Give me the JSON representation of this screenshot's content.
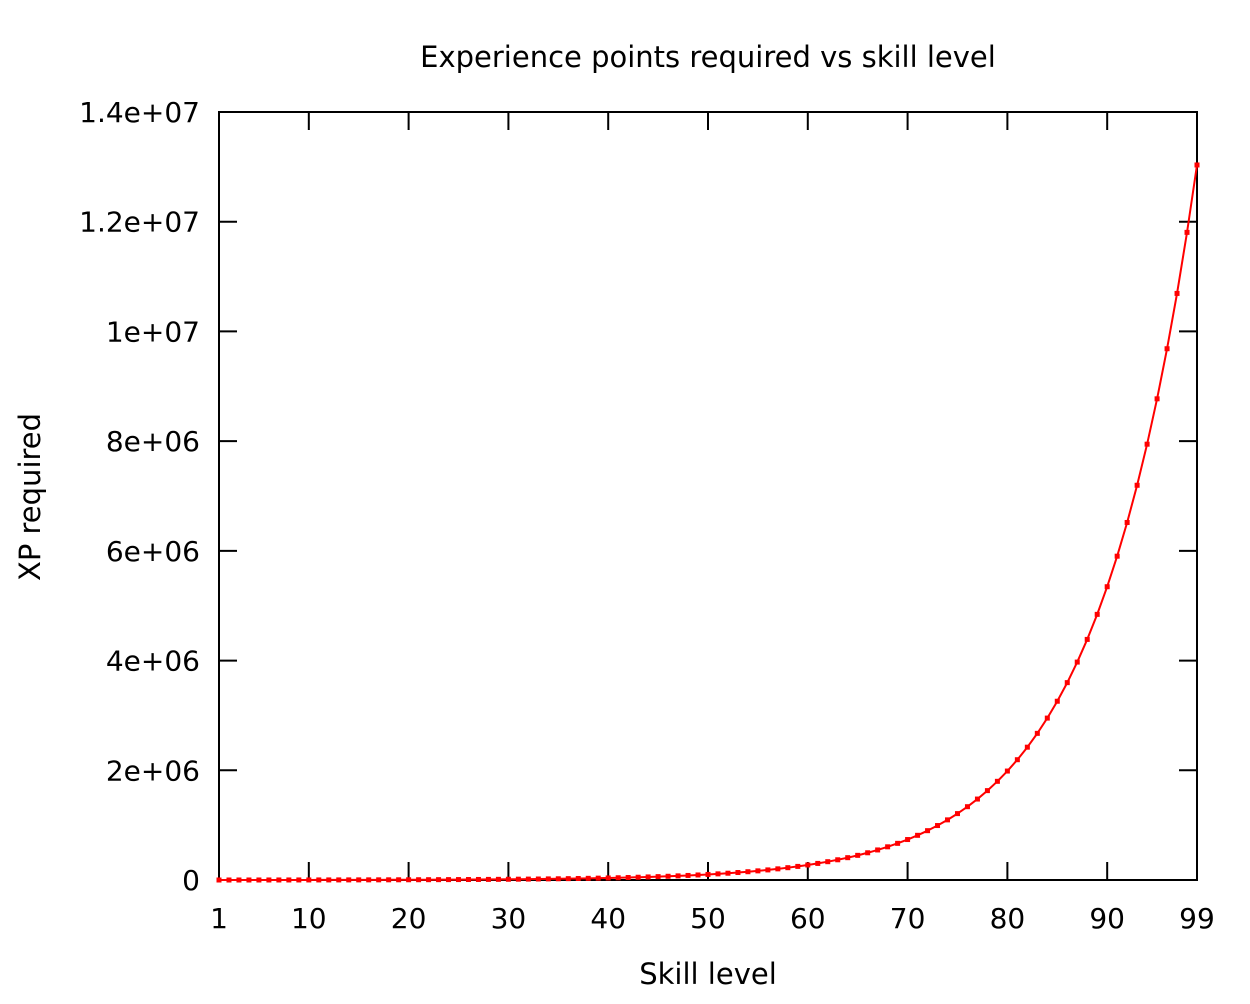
{
  "chart_data": {
    "type": "line",
    "title": "Experience points required vs skill level",
    "xlabel": "Skill level",
    "ylabel": "XP required",
    "xlim": [
      1,
      99
    ],
    "ylim": [
      0,
      14000000
    ],
    "grid": false,
    "legend": "none",
    "x_ticks": [
      {
        "value": 1,
        "label": "1"
      },
      {
        "value": 10,
        "label": "10"
      },
      {
        "value": 20,
        "label": "20"
      },
      {
        "value": 30,
        "label": "30"
      },
      {
        "value": 40,
        "label": "40"
      },
      {
        "value": 50,
        "label": "50"
      },
      {
        "value": 60,
        "label": "60"
      },
      {
        "value": 70,
        "label": "70"
      },
      {
        "value": 80,
        "label": "80"
      },
      {
        "value": 90,
        "label": "90"
      },
      {
        "value": 99,
        "label": "99"
      }
    ],
    "y_ticks": [
      {
        "value": 0,
        "label": "0"
      },
      {
        "value": 2000000,
        "label": "2e+06"
      },
      {
        "value": 4000000,
        "label": "4e+06"
      },
      {
        "value": 6000000,
        "label": "6e+06"
      },
      {
        "value": 8000000,
        "label": "8e+06"
      },
      {
        "value": 10000000,
        "label": "1e+07"
      },
      {
        "value": 12000000,
        "label": "1.2e+07"
      },
      {
        "value": 14000000,
        "label": "1.4e+07"
      }
    ],
    "series": [
      {
        "color": "#ff0000",
        "marker": "square",
        "x": [
          1,
          2,
          3,
          4,
          5,
          6,
          7,
          8,
          9,
          10,
          11,
          12,
          13,
          14,
          15,
          16,
          17,
          18,
          19,
          20,
          21,
          22,
          23,
          24,
          25,
          26,
          27,
          28,
          29,
          30,
          31,
          32,
          33,
          34,
          35,
          36,
          37,
          38,
          39,
          40,
          41,
          42,
          43,
          44,
          45,
          46,
          47,
          48,
          49,
          50,
          51,
          52,
          53,
          54,
          55,
          56,
          57,
          58,
          59,
          60,
          61,
          62,
          63,
          64,
          65,
          66,
          67,
          68,
          69,
          70,
          71,
          72,
          73,
          74,
          75,
          76,
          77,
          78,
          79,
          80,
          81,
          82,
          83,
          84,
          85,
          86,
          87,
          88,
          89,
          90,
          91,
          92,
          93,
          94,
          95,
          96,
          97,
          98,
          99
        ],
        "y": [
          0,
          83,
          174,
          276,
          388,
          512,
          650,
          801,
          969,
          1154,
          1358,
          1584,
          1833,
          2107,
          2411,
          2746,
          3115,
          3523,
          3973,
          4470,
          5018,
          5624,
          6291,
          7028,
          7842,
          8740,
          9730,
          10824,
          12031,
          13363,
          14833,
          16456,
          18247,
          20224,
          22406,
          24815,
          27473,
          30408,
          33648,
          37224,
          41171,
          45529,
          50339,
          55649,
          61512,
          67983,
          75127,
          83014,
          91721,
          101333,
          111945,
          123660,
          136594,
          150872,
          166636,
          184040,
          203254,
          224466,
          247886,
          273742,
          302288,
          333804,
          368599,
          407015,
          449428,
          496254,
          547953,
          605032,
          668051,
          737627,
          814445,
          899257,
          992895,
          1096278,
          1210421,
          1336443,
          1475581,
          1629200,
          1798808,
          1986068,
          2192818,
          2421087,
          2673114,
          2951373,
          3258594,
          3597792,
          3972294,
          4385776,
          4842295,
          5346332,
          5902831,
          6517253,
          7195629,
          7944614,
          8771558,
          9684577,
          10692629,
          11805606,
          13034431
        ]
      }
    ]
  }
}
